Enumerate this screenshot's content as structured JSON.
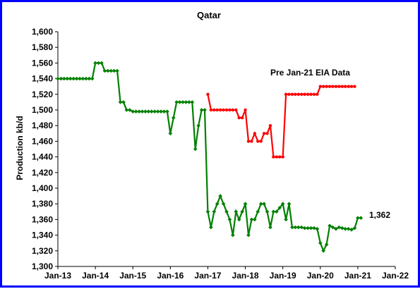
{
  "chart_data": {
    "type": "line",
    "title": "Qatar",
    "xlabel": "",
    "ylabel": "Production kb/d",
    "annotation_text": "Pre Jan-21 EIA Data",
    "last_value_label": "1,362",
    "ylim": [
      1300,
      1600
    ],
    "y_ticks": [
      1300,
      1320,
      1340,
      1360,
      1380,
      1400,
      1420,
      1440,
      1460,
      1480,
      1500,
      1520,
      1540,
      1560,
      1580,
      1600
    ],
    "y_tick_labels": [
      "1,300",
      "1,320",
      "1,340",
      "1,360",
      "1,380",
      "1,400",
      "1,420",
      "1,440",
      "1,460",
      "1,480",
      "1,500",
      "1,520",
      "1,540",
      "1,560",
      "1,580",
      "1,600"
    ],
    "x_tick_labels": [
      "Jan-13",
      "Jan-14",
      "Jan-15",
      "Jan-16",
      "Jan-17",
      "Jan-18",
      "Jan-19",
      "Jan-20",
      "Jan-21",
      "Jan-22"
    ],
    "x_start": "2013-01",
    "x_end": "2022-01",
    "grid": false,
    "series": [
      {
        "color": "#008000",
        "marker": "diamond",
        "x": [
          "2013-01",
          "2013-02",
          "2013-03",
          "2013-04",
          "2013-05",
          "2013-06",
          "2013-07",
          "2013-08",
          "2013-09",
          "2013-10",
          "2013-11",
          "2013-12",
          "2014-01",
          "2014-02",
          "2014-03",
          "2014-04",
          "2014-05",
          "2014-06",
          "2014-07",
          "2014-08",
          "2014-09",
          "2014-10",
          "2014-11",
          "2014-12",
          "2015-01",
          "2015-02",
          "2015-03",
          "2015-04",
          "2015-05",
          "2015-06",
          "2015-07",
          "2015-08",
          "2015-09",
          "2015-10",
          "2015-11",
          "2015-12",
          "2016-01",
          "2016-02",
          "2016-03",
          "2016-04",
          "2016-05",
          "2016-06",
          "2016-07",
          "2016-08",
          "2016-09",
          "2016-10",
          "2016-11",
          "2016-12",
          "2017-01",
          "2017-02",
          "2017-03",
          "2017-04",
          "2017-05",
          "2017-06",
          "2017-07",
          "2017-08",
          "2017-09",
          "2017-10",
          "2017-11",
          "2017-12",
          "2018-01",
          "2018-02",
          "2018-03",
          "2018-04",
          "2018-05",
          "2018-06",
          "2018-07",
          "2018-08",
          "2018-09",
          "2018-10",
          "2018-11",
          "2018-12",
          "2019-01",
          "2019-02",
          "2019-03",
          "2019-04",
          "2019-05",
          "2019-06",
          "2019-07",
          "2019-08",
          "2019-09",
          "2019-10",
          "2019-11",
          "2019-12",
          "2020-01",
          "2020-02",
          "2020-03",
          "2020-04",
          "2020-05",
          "2020-06",
          "2020-07",
          "2020-08",
          "2020-09",
          "2020-10",
          "2020-11",
          "2020-12",
          "2021-01",
          "2021-02"
        ],
        "values": [
          1540,
          1540,
          1540,
          1540,
          1540,
          1540,
          1540,
          1540,
          1540,
          1540,
          1540,
          1540,
          1560,
          1560,
          1560,
          1550,
          1550,
          1550,
          1550,
          1550,
          1510,
          1510,
          1500,
          1500,
          1498,
          1498,
          1498,
          1498,
          1498,
          1498,
          1498,
          1498,
          1498,
          1498,
          1498,
          1498,
          1470,
          1490,
          1510,
          1510,
          1510,
          1510,
          1510,
          1510,
          1450,
          1480,
          1500,
          1500,
          1370,
          1350,
          1370,
          1380,
          1390,
          1380,
          1370,
          1360,
          1340,
          1370,
          1360,
          1370,
          1380,
          1340,
          1360,
          1360,
          1370,
          1380,
          1380,
          1370,
          1350,
          1370,
          1370,
          1375,
          1380,
          1360,
          1380,
          1350,
          1350,
          1350,
          1350,
          1349,
          1349,
          1349,
          1349,
          1348,
          1330,
          1320,
          1328,
          1352,
          1350,
          1348,
          1350,
          1349,
          1348,
          1348,
          1347,
          1349,
          1362,
          1362
        ]
      },
      {
        "color": "#ff0000",
        "marker": "circle",
        "x": [
          "2017-01",
          "2017-02",
          "2017-03",
          "2017-04",
          "2017-05",
          "2017-06",
          "2017-07",
          "2017-08",
          "2017-09",
          "2017-10",
          "2017-11",
          "2017-12",
          "2018-01",
          "2018-02",
          "2018-03",
          "2018-04",
          "2018-05",
          "2018-06",
          "2018-07",
          "2018-08",
          "2018-09",
          "2018-10",
          "2018-11",
          "2018-12",
          "2019-01",
          "2019-02",
          "2019-03",
          "2019-04",
          "2019-05",
          "2019-06",
          "2019-07",
          "2019-08",
          "2019-09",
          "2019-10",
          "2019-11",
          "2019-12",
          "2020-01",
          "2020-02",
          "2020-03",
          "2020-04",
          "2020-05",
          "2020-06",
          "2020-07",
          "2020-08",
          "2020-09",
          "2020-10",
          "2020-11",
          "2020-12"
        ],
        "values": [
          1520,
          1500,
          1500,
          1500,
          1500,
          1500,
          1500,
          1500,
          1500,
          1500,
          1490,
          1490,
          1500,
          1460,
          1460,
          1470,
          1460,
          1460,
          1470,
          1470,
          1480,
          1440,
          1440,
          1440,
          1440,
          1520,
          1520,
          1520,
          1520,
          1520,
          1520,
          1520,
          1520,
          1520,
          1520,
          1520,
          1530,
          1530,
          1530,
          1530,
          1530,
          1530,
          1530,
          1530,
          1530,
          1530,
          1530,
          1530
        ]
      }
    ]
  }
}
